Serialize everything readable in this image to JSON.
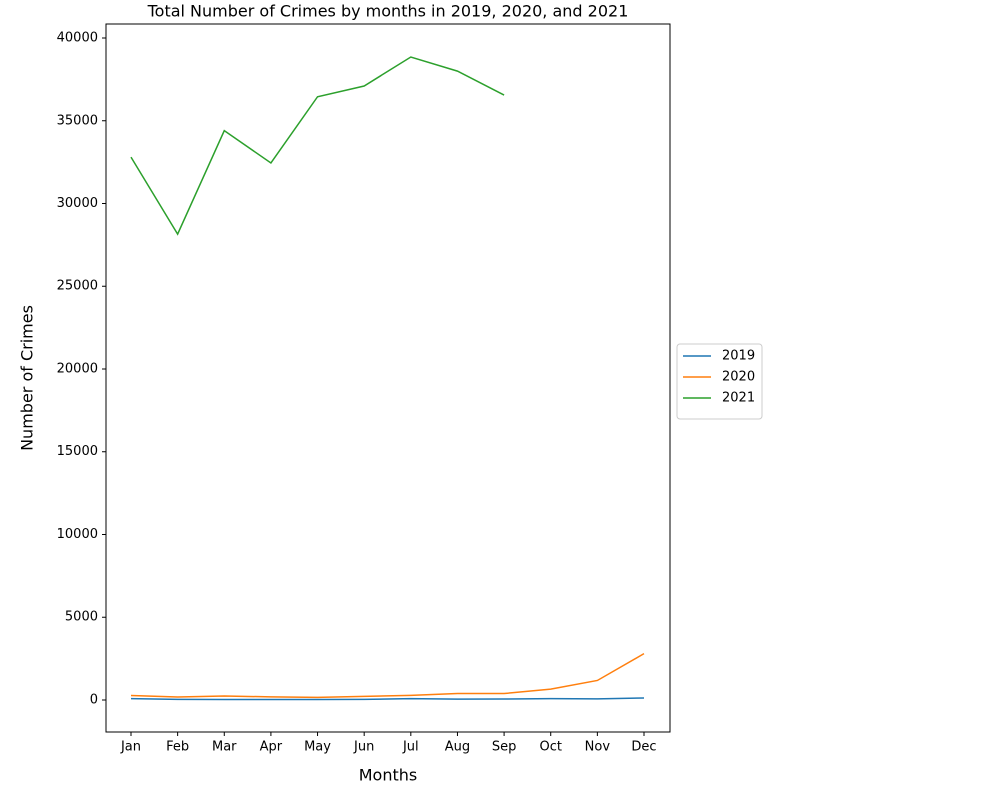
{
  "chart_data": {
    "type": "line",
    "title": "Total Number of Crimes by months in 2019, 2020, and 2021",
    "x_label": "Months",
    "y_label": "Number of Crimes",
    "categories": [
      "Jan",
      "Feb",
      "Mar",
      "Apr",
      "May",
      "Jun",
      "Jul",
      "Aug",
      "Sep",
      "Oct",
      "Nov",
      "Dec"
    ],
    "series": [
      {
        "name": "2019",
        "color": "#1f77b4",
        "values": [
          80,
          40,
          30,
          30,
          30,
          40,
          80,
          50,
          60,
          80,
          70,
          120
        ]
      },
      {
        "name": "2020",
        "color": "#ff7f0e",
        "values": [
          270,
          180,
          240,
          190,
          160,
          220,
          280,
          390,
          390,
          660,
          1180,
          2800
        ]
      },
      {
        "name": "2021",
        "color": "#2ca02c",
        "values": [
          32800,
          28150,
          34400,
          32450,
          36450,
          37100,
          38850,
          38000,
          36550,
          null,
          null,
          null
        ]
      }
    ],
    "ylim": [
      -1934,
      40846
    ],
    "yticks": [
      0,
      5000,
      10000,
      15000,
      20000,
      25000,
      30000,
      35000,
      40000
    ],
    "legend": "center right"
  }
}
